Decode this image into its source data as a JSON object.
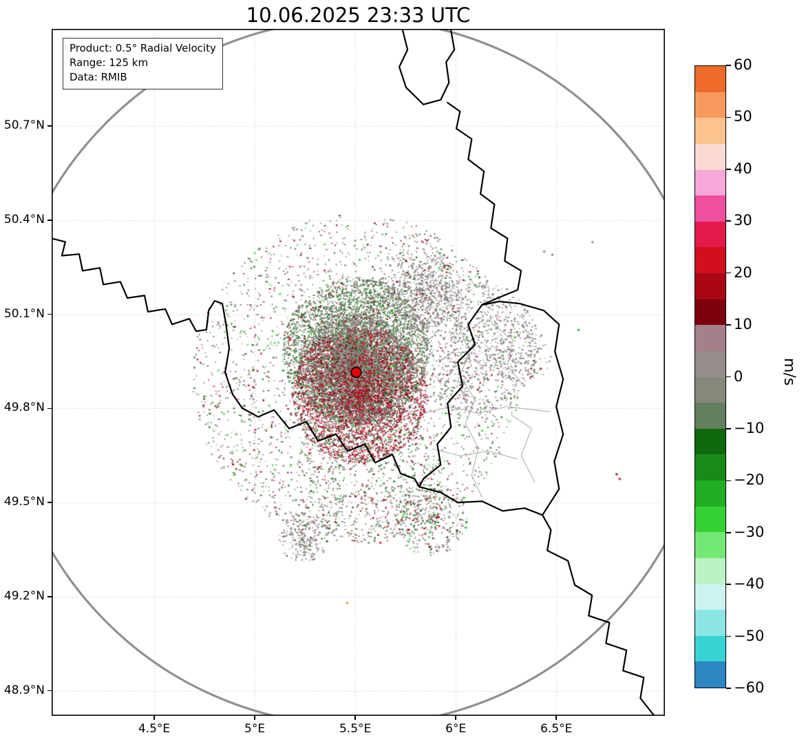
{
  "title": "10.06.2025 23:33 UTC",
  "info_box": {
    "product": "Product: 0.5° Radial Velocity",
    "range": "Range: 125 km",
    "data": "Data: RMIB"
  },
  "chart_data": {
    "type": "heatmap",
    "subtype": "doppler-radar-radial-velocity-ppi-map",
    "title": "10.06.2025 23:33 UTC",
    "product": "0.5° Radial Velocity",
    "range_km": 125,
    "source": "RMIB",
    "radar_site": {
      "lon": 5.505,
      "lat": 49.915
    },
    "x_axis": {
      "tick_labels": [
        "4.5°E",
        "5°E",
        "5.5°E",
        "6°E",
        "6.5°E"
      ],
      "tick_values": [
        4.5,
        5.0,
        5.5,
        6.0,
        6.5
      ],
      "range": [
        3.99,
        7.04
      ]
    },
    "y_axis": {
      "tick_labels": [
        "50.7°N",
        "50.4°N",
        "50.1°N",
        "49.8°N",
        "49.5°N",
        "49.2°N",
        "48.9°N"
      ],
      "tick_values": [
        50.7,
        50.4,
        50.1,
        49.8,
        49.5,
        49.2,
        48.9
      ],
      "range": [
        48.82,
        51.01
      ]
    },
    "grid": {
      "visible": true,
      "style": "dotted",
      "color": "#c9c9c9"
    },
    "range_ring": {
      "radius_km": 125,
      "color": "#8f8f8f"
    },
    "colorbar": {
      "unit": "m/s",
      "vmin": -60,
      "vmax": 60,
      "tick_values": [
        60,
        50,
        40,
        30,
        20,
        10,
        0,
        -10,
        -20,
        -30,
        -40,
        -50,
        -60
      ],
      "tick_labels": [
        "60",
        "50",
        "40",
        "30",
        "20",
        "10",
        "0",
        "−10",
        "−20",
        "−30",
        "−40",
        "−50",
        "−60"
      ],
      "bands_top_to_bottom": [
        {
          "from": 55,
          "to": 60,
          "color": "#ee6c2b"
        },
        {
          "from": 50,
          "to": 55,
          "color": "#f79a5d"
        },
        {
          "from": 45,
          "to": 50,
          "color": "#fbc390"
        },
        {
          "from": 40,
          "to": 45,
          "color": "#fadbd3"
        },
        {
          "from": 35,
          "to": 40,
          "color": "#f6a8d8"
        },
        {
          "from": 30,
          "to": 35,
          "color": "#ef4f9f"
        },
        {
          "from": 25,
          "to": 30,
          "color": "#e4194a"
        },
        {
          "from": 20,
          "to": 25,
          "color": "#d10f1d"
        },
        {
          "from": 15,
          "to": 20,
          "color": "#a90713"
        },
        {
          "from": 10,
          "to": 15,
          "color": "#7d000d"
        },
        {
          "from": 5,
          "to": 10,
          "color": "#a3808a"
        },
        {
          "from": 0,
          "to": 5,
          "color": "#968c8a"
        },
        {
          "from": -5,
          "to": 0,
          "color": "#85897b"
        },
        {
          "from": -10,
          "to": -5,
          "color": "#647f60"
        },
        {
          "from": -15,
          "to": -10,
          "color": "#10680f"
        },
        {
          "from": -20,
          "to": -15,
          "color": "#188a18"
        },
        {
          "from": -25,
          "to": -20,
          "color": "#21ad21"
        },
        {
          "from": -30,
          "to": -25,
          "color": "#33d133"
        },
        {
          "from": -35,
          "to": -30,
          "color": "#74e874"
        },
        {
          "from": -40,
          "to": -35,
          "color": "#bdf3c4"
        },
        {
          "from": -45,
          "to": -40,
          "color": "#cdf2ef"
        },
        {
          "from": -50,
          "to": -45,
          "color": "#8ae7e5"
        },
        {
          "from": -55,
          "to": -50,
          "color": "#38d4d4"
        },
        {
          "from": -60,
          "to": -55,
          "color": "#2d86c3"
        }
      ]
    },
    "velocity_field": {
      "summary": "Speckled radial-velocity echoes within roughly 60 km of the radar site near 5.5°E 49.9°N: negative velocities (green, toward radar) dominate north of the site, positive velocities (red/dark red) south of it, with widespread weak near-zero values (gray-mauve). Additional clutter echoes extend east toward Luxembourg/Germany and sporadic isolated pixels appear elsewhere in the scan.",
      "palettes": {
        "green_mix": [
          [
            "#27632a",
            3
          ],
          [
            "#3a7d3c",
            3
          ],
          [
            "#66815f",
            4
          ],
          [
            "#7b8873",
            4
          ],
          [
            "#96858b",
            3
          ],
          [
            "#1f9e1f",
            1
          ],
          [
            "#35d435",
            0.5
          ],
          [
            "#8f1724",
            0.7
          ],
          [
            "#c2132c",
            0.3
          ]
        ],
        "mauve_mix": [
          [
            "#97868c",
            5
          ],
          [
            "#8b7f82",
            4
          ],
          [
            "#7f887a",
            3
          ],
          [
            "#6f1b26",
            1
          ],
          [
            "#27632a",
            1
          ]
        ],
        "red_mix": [
          [
            "#7c1020",
            3
          ],
          [
            "#9e1526",
            3
          ],
          [
            "#c01330",
            2
          ],
          [
            "#97848a",
            3
          ],
          [
            "#e31a1c",
            0.7
          ],
          [
            "#2e7d2e",
            0.8
          ],
          [
            "#2fd42f",
            0.3
          ]
        ],
        "sparse_mix": [
          [
            "#96868c",
            4
          ],
          [
            "#7f887a",
            3
          ],
          [
            "#8f1724",
            1.5
          ],
          [
            "#2f7d2f",
            1.5
          ],
          [
            "#30cf30",
            0.7
          ],
          [
            "#d41a30",
            0.7
          ],
          [
            "#1c5e1c",
            1
          ]
        ],
        "gray_mauve": [
          [
            "#95898d",
            6
          ],
          [
            "#8a8286",
            3
          ],
          [
            "#7d867b",
            2
          ],
          [
            "#8f1724",
            0.4
          ],
          [
            "#2f7d2f",
            0.4
          ]
        ]
      },
      "clusters": [
        {
          "name": "core-north",
          "lon": 5.5,
          "lat": 49.985,
          "radius_km": 26,
          "count": 5200,
          "palette": "green_mix",
          "concentration": 0.8
        },
        {
          "name": "core-center",
          "lon": 5.495,
          "lat": 49.925,
          "radius_km": 20,
          "count": 3200,
          "palette": "mauve_mix",
          "concentration": 0.85
        },
        {
          "name": "core-south",
          "lon": 5.52,
          "lat": 49.845,
          "radius_km": 24,
          "count": 4200,
          "palette": "red_mix",
          "concentration": 0.8
        },
        {
          "name": "outer-fringe",
          "lon": 5.5,
          "lat": 49.9,
          "radius_km": 58,
          "count": 2600,
          "palette": "sparse_mix",
          "concentration": 0.5
        },
        {
          "name": "east-clutter",
          "lon": 6.07,
          "lat": 50.0,
          "radius_km": 24,
          "count": 1000,
          "palette": "gray_mauve",
          "concentration": 0.6
        },
        {
          "name": "northeast-patch",
          "lon": 5.82,
          "lat": 50.18,
          "radius_km": 15,
          "count": 700,
          "palette": "gray_mauve",
          "concentration": 0.7
        },
        {
          "name": "south-scatter",
          "lon": 5.57,
          "lat": 49.6,
          "radius_km": 26,
          "count": 600,
          "palette": "sparse_mix",
          "concentration": 0.5
        },
        {
          "name": "southwest-patch",
          "lon": 5.24,
          "lat": 49.39,
          "radius_km": 9,
          "count": 260,
          "palette": "gray_mauve",
          "concentration": 0.7
        },
        {
          "name": "southeast-patch",
          "lon": 5.87,
          "lat": 49.45,
          "radius_km": 13,
          "count": 380,
          "palette": "sparse_mix",
          "concentration": 0.6
        },
        {
          "name": "east-far-patch",
          "lon": 6.33,
          "lat": 49.97,
          "radius_km": 10,
          "count": 150,
          "palette": "gray_mauve",
          "concentration": 0.6
        }
      ],
      "isolated_echoes": [
        {
          "lon": 6.61,
          "lat": 50.05,
          "color": "#2bbf2b"
        },
        {
          "lon": 6.8,
          "lat": 49.59,
          "color": "#8c1a1a"
        },
        {
          "lon": 6.815,
          "lat": 49.575,
          "color": "#c01330"
        },
        {
          "lon": 5.46,
          "lat": 49.18,
          "color": "#f08a3c"
        },
        {
          "lon": 6.44,
          "lat": 50.3,
          "color": "#95898d"
        },
        {
          "lon": 6.48,
          "lat": 50.29,
          "color": "#8a8286"
        },
        {
          "lon": 6.05,
          "lat": 49.42,
          "color": "#2bbf2b"
        },
        {
          "lon": 4.7,
          "lat": 49.93,
          "color": "#95898d"
        },
        {
          "lon": 6.68,
          "lat": 50.33,
          "color": "#95898d"
        }
      ]
    }
  },
  "map": {
    "frame_color": "#000000",
    "national_border_color": "#000000",
    "regional_border_color": "#b5b5b5",
    "marker": {
      "color": "#e8000b",
      "edge_color": "#000000"
    },
    "borders_lonlat": {
      "national": [
        [
          [
            5.736,
            51.005
          ],
          [
            5.76,
            50.944
          ],
          [
            5.719,
            50.889
          ],
          [
            5.753,
            50.823
          ],
          [
            5.839,
            50.769
          ],
          [
            5.925,
            50.784
          ],
          [
            5.966,
            50.839
          ],
          [
            5.952,
            50.904
          ],
          [
            5.993,
            50.944
          ],
          [
            5.976,
            51.005
          ]
        ],
        [
          [
            5.959,
            50.775
          ],
          [
            6.021,
            50.747
          ],
          [
            6.003,
            50.692
          ],
          [
            6.079,
            50.659
          ],
          [
            6.062,
            50.594
          ],
          [
            6.14,
            50.556
          ],
          [
            6.123,
            50.484
          ],
          [
            6.192,
            50.451
          ],
          [
            6.175,
            50.375
          ],
          [
            6.257,
            50.342
          ],
          [
            6.243,
            50.27
          ],
          [
            6.325,
            50.239
          ],
          [
            6.308,
            50.178
          ],
          [
            6.209,
            50.152
          ],
          [
            6.13,
            50.13
          ]
        ],
        [
          [
            6.13,
            50.13
          ],
          [
            6.062,
            50.068
          ],
          [
            6.096,
            50.003
          ],
          [
            6.01,
            49.948
          ],
          [
            6.034,
            49.871
          ],
          [
            5.959,
            49.817
          ],
          [
            5.976,
            49.74
          ],
          [
            5.908,
            49.686
          ],
          [
            5.925,
            49.62
          ],
          [
            5.839,
            49.576
          ],
          [
            5.818,
            49.55
          ],
          [
            5.925,
            49.532
          ],
          [
            6.01,
            49.5
          ],
          [
            6.13,
            49.504
          ],
          [
            6.233,
            49.473
          ],
          [
            6.342,
            49.482
          ],
          [
            6.431,
            49.46
          ],
          [
            6.514,
            49.543
          ],
          [
            6.49,
            49.631
          ],
          [
            6.534,
            49.718
          ],
          [
            6.5,
            49.806
          ],
          [
            6.534,
            49.893
          ],
          [
            6.493,
            49.981
          ],
          [
            6.514,
            50.068
          ],
          [
            6.438,
            50.112
          ],
          [
            6.319,
            50.134
          ],
          [
            6.216,
            50.141
          ],
          [
            6.13,
            50.13
          ]
        ],
        [
          [
            6.431,
            49.46
          ],
          [
            6.473,
            49.412
          ],
          [
            6.455,
            49.347
          ],
          [
            6.558,
            49.314
          ],
          [
            6.592,
            49.237
          ],
          [
            6.678,
            49.204
          ],
          [
            6.661,
            49.139
          ],
          [
            6.764,
            49.117
          ],
          [
            6.747,
            49.051
          ],
          [
            6.849,
            49.029
          ],
          [
            6.832,
            48.964
          ],
          [
            6.935,
            48.942
          ],
          [
            6.918,
            48.876
          ],
          [
            6.986,
            48.821
          ]
        ],
        [
          [
            3.99,
            50.342
          ],
          [
            4.058,
            50.331
          ],
          [
            4.041,
            50.287
          ],
          [
            4.127,
            50.292
          ],
          [
            4.144,
            50.239
          ],
          [
            4.23,
            50.248
          ],
          [
            4.247,
            50.195
          ],
          [
            4.332,
            50.204
          ],
          [
            4.367,
            50.152
          ],
          [
            4.452,
            50.16
          ],
          [
            4.469,
            50.108
          ],
          [
            4.555,
            50.117
          ],
          [
            4.589,
            50.068
          ],
          [
            4.675,
            50.086
          ],
          [
            4.709,
            50.046
          ],
          [
            4.76,
            50.051
          ],
          [
            4.771,
            50.112
          ],
          [
            4.801,
            50.143
          ],
          [
            4.839,
            50.134
          ],
          [
            4.856,
            50.073
          ],
          [
            4.873,
            49.992
          ],
          [
            4.853,
            49.915
          ],
          [
            4.89,
            49.845
          ],
          [
            4.938,
            49.801
          ],
          [
            5.017,
            49.773
          ],
          [
            5.096,
            49.795
          ],
          [
            5.171,
            49.736
          ],
          [
            5.257,
            49.758
          ],
          [
            5.315,
            49.696
          ],
          [
            5.404,
            49.718
          ],
          [
            5.462,
            49.664
          ],
          [
            5.548,
            49.686
          ],
          [
            5.599,
            49.627
          ],
          [
            5.685,
            49.653
          ],
          [
            5.726,
            49.592
          ],
          [
            5.795,
            49.576
          ],
          [
            5.818,
            49.55
          ]
        ]
      ],
      "regional": [
        [
          [
            6.031,
            50.156
          ],
          [
            6.01,
            50.068
          ],
          [
            6.068,
            49.981
          ],
          [
            6.021,
            49.904
          ],
          [
            6.096,
            49.828
          ],
          [
            6.048,
            49.751
          ],
          [
            6.113,
            49.675
          ],
          [
            6.079,
            49.587
          ],
          [
            6.13,
            49.517
          ]
        ],
        [
          [
            5.839,
            49.784
          ],
          [
            5.976,
            49.806
          ],
          [
            6.113,
            49.784
          ],
          [
            6.25,
            49.806
          ],
          [
            6.473,
            49.789
          ]
        ],
        [
          [
            5.884,
            49.671
          ],
          [
            6.021,
            49.649
          ],
          [
            6.164,
            49.664
          ],
          [
            6.308,
            49.638
          ]
        ],
        [
          [
            6.181,
            50.068
          ],
          [
            6.284,
            50.02
          ],
          [
            6.257,
            49.937
          ],
          [
            6.342,
            49.867
          ]
        ],
        [
          [
            6.274,
            49.78
          ],
          [
            6.377,
            49.736
          ],
          [
            6.325,
            49.649
          ],
          [
            6.393,
            49.565
          ]
        ]
      ]
    }
  }
}
